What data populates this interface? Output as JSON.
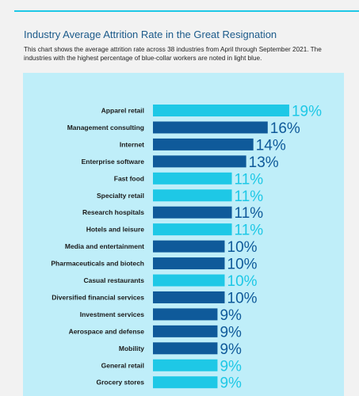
{
  "header": {
    "title": "Industry Average Attrition Rate in the Great Resignation",
    "subtitle": "This chart shows the average attrition rate across 38 industries from April through September 2021. The industries with the highest percentage of blue-collar workers are noted in light blue."
  },
  "colors": {
    "blue_collar": "#1ec8e6",
    "other": "#0f5a9a",
    "panel": "#bfeef9",
    "accent_rule": "#1ec8e6"
  },
  "chart_data": {
    "type": "bar",
    "orientation": "horizontal",
    "categories": [
      "Apparel retail",
      "Management consulting",
      "Internet",
      "Enterprise software",
      "Fast food",
      "Specialty retail",
      "Research hospitals",
      "Hotels and leisure",
      "Media and entertainment",
      "Pharmaceuticals and biotech",
      "Casual restaurants",
      "Diversified financial services",
      "Investment services",
      "Aerospace and defense",
      "Mobility",
      "General retail",
      "Grocery stores"
    ],
    "values": [
      19,
      16,
      14,
      13,
      11,
      11,
      11,
      11,
      10,
      10,
      10,
      10,
      9,
      9,
      9,
      9,
      9
    ],
    "labels": [
      "19%",
      "16%",
      "14%",
      "13%",
      "11%",
      "11%",
      "11%",
      "11%",
      "10%",
      "10%",
      "10%",
      "10%",
      "9%",
      "9%",
      "9%",
      "9%",
      "9%"
    ],
    "blue_collar": [
      true,
      false,
      false,
      false,
      true,
      true,
      false,
      true,
      false,
      false,
      true,
      false,
      false,
      false,
      false,
      true,
      true
    ],
    "grid": false,
    "legend": "none"
  }
}
